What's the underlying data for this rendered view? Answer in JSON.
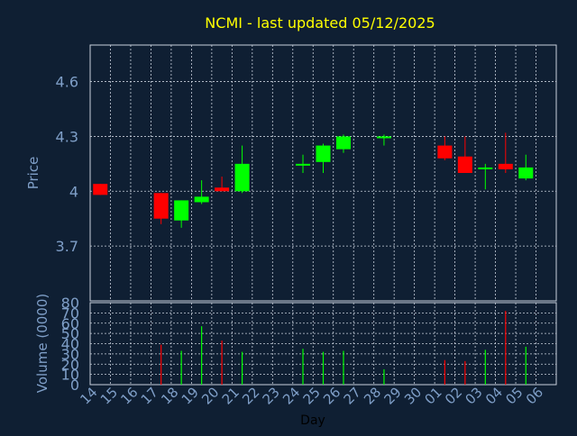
{
  "title": "NCMI - last updated 05/12/2025",
  "colors": {
    "background": "#0f1f33",
    "title": "#ffff00",
    "axis_text": "#7f9fc8",
    "grid": "#c8d0dc",
    "up": "#00ff00",
    "down": "#ff0000"
  },
  "chart_data": [
    {
      "type": "candlestick",
      "ylabel": "Price",
      "ylim": [
        3.4,
        4.8
      ],
      "yticks": [
        3.7,
        4,
        4.3,
        4.6
      ],
      "ytick_labels": [
        "3.7",
        "4",
        "4.3",
        "4.6"
      ],
      "grid": true,
      "candles": [
        {
          "x": "14",
          "open": 4.04,
          "high": 4.04,
          "low": 3.98,
          "close": 3.98
        },
        {
          "x": "17",
          "open": 3.99,
          "high": 3.99,
          "low": 3.82,
          "close": 3.85
        },
        {
          "x": "18",
          "open": 3.84,
          "high": 3.95,
          "low": 3.8,
          "close": 3.95
        },
        {
          "x": "19",
          "open": 3.94,
          "high": 4.06,
          "low": 3.93,
          "close": 3.97
        },
        {
          "x": "20",
          "open": 4.02,
          "high": 4.08,
          "low": 4.0,
          "close": 4.0
        },
        {
          "x": "21",
          "open": 4.0,
          "high": 4.25,
          "low": 3.99,
          "close": 4.15
        },
        {
          "x": "24",
          "open": 4.14,
          "high": 4.2,
          "low": 4.1,
          "close": 4.15
        },
        {
          "x": "25",
          "open": 4.16,
          "high": 4.26,
          "low": 4.1,
          "close": 4.25
        },
        {
          "x": "26",
          "open": 4.23,
          "high": 4.31,
          "low": 4.21,
          "close": 4.3
        },
        {
          "x": "28",
          "open": 4.29,
          "high": 4.31,
          "low": 4.25,
          "close": 4.3
        },
        {
          "x": "01",
          "open": 4.25,
          "high": 4.3,
          "low": 4.17,
          "close": 4.18
        },
        {
          "x": "02",
          "open": 4.19,
          "high": 4.3,
          "low": 4.1,
          "close": 4.1
        },
        {
          "x": "03",
          "open": 4.12,
          "high": 4.15,
          "low": 4.01,
          "close": 4.13
        },
        {
          "x": "04",
          "open": 4.15,
          "high": 4.32,
          "low": 4.1,
          "close": 4.12
        },
        {
          "x": "05",
          "open": 4.07,
          "high": 4.2,
          "low": 4.06,
          "close": 4.13
        }
      ]
    },
    {
      "type": "bar",
      "xlabel": "Day",
      "ylabel": "Volume (0000)",
      "ylim": [
        0,
        80
      ],
      "yticks": [
        0,
        10,
        20,
        30,
        40,
        50,
        60,
        70,
        80
      ],
      "grid": true,
      "categories": [
        "14",
        "15",
        "16",
        "17",
        "18",
        "19",
        "20",
        "21",
        "22",
        "23",
        "24",
        "25",
        "26",
        "27",
        "28",
        "29",
        "30",
        "01",
        "02",
        "03",
        "04",
        "05",
        "06"
      ],
      "bars": [
        {
          "x": "17",
          "value": 39,
          "direction": "down"
        },
        {
          "x": "18",
          "value": 33,
          "direction": "up"
        },
        {
          "x": "19",
          "value": 57,
          "direction": "up"
        },
        {
          "x": "20",
          "value": 43,
          "direction": "down"
        },
        {
          "x": "21",
          "value": 32,
          "direction": "up"
        },
        {
          "x": "24",
          "value": 35,
          "direction": "up"
        },
        {
          "x": "25",
          "value": 32,
          "direction": "up"
        },
        {
          "x": "26",
          "value": 33,
          "direction": "up"
        },
        {
          "x": "28",
          "value": 15,
          "direction": "up"
        },
        {
          "x": "01",
          "value": 24,
          "direction": "down"
        },
        {
          "x": "02",
          "value": 23,
          "direction": "down"
        },
        {
          "x": "03",
          "value": 34,
          "direction": "up"
        },
        {
          "x": "04",
          "value": 72,
          "direction": "down"
        },
        {
          "x": "05",
          "value": 37,
          "direction": "up"
        }
      ]
    }
  ]
}
